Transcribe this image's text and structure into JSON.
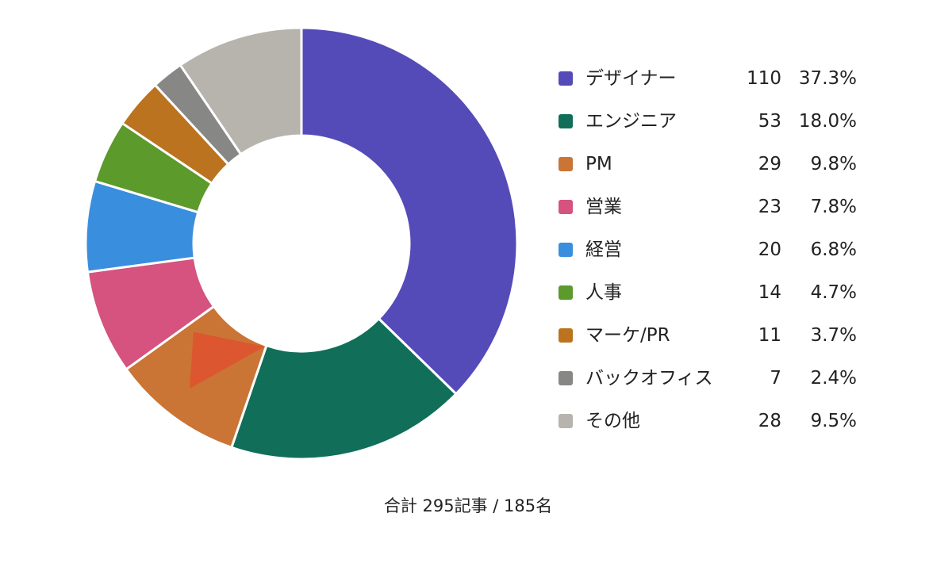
{
  "chart_data": {
    "type": "pie",
    "subtype": "donut",
    "categories": [
      "デザイナー",
      "エンジニア",
      "PM",
      "営業",
      "経営",
      "人事",
      "マーケ/PR",
      "バックオフィス",
      "その他"
    ],
    "values": [
      110,
      53,
      29,
      23,
      20,
      14,
      11,
      7,
      28
    ],
    "percentages": [
      "37.3%",
      "18.0%",
      "9.8%",
      "7.8%",
      "6.8%",
      "4.7%",
      "3.7%",
      "2.4%",
      "9.5%"
    ],
    "colors": [
      "#544bb8",
      "#116e59",
      "#ca7535",
      "#d5537e",
      "#3a8ede",
      "#5c9a2c",
      "#bc7320",
      "#878785",
      "#b6b4ad"
    ],
    "accent_color": "#dc5630",
    "legend_position": "right",
    "start_angle_deg": 0,
    "direction": "clockwise"
  },
  "footer": {
    "total_text": "合計 295記事 / 185名"
  }
}
